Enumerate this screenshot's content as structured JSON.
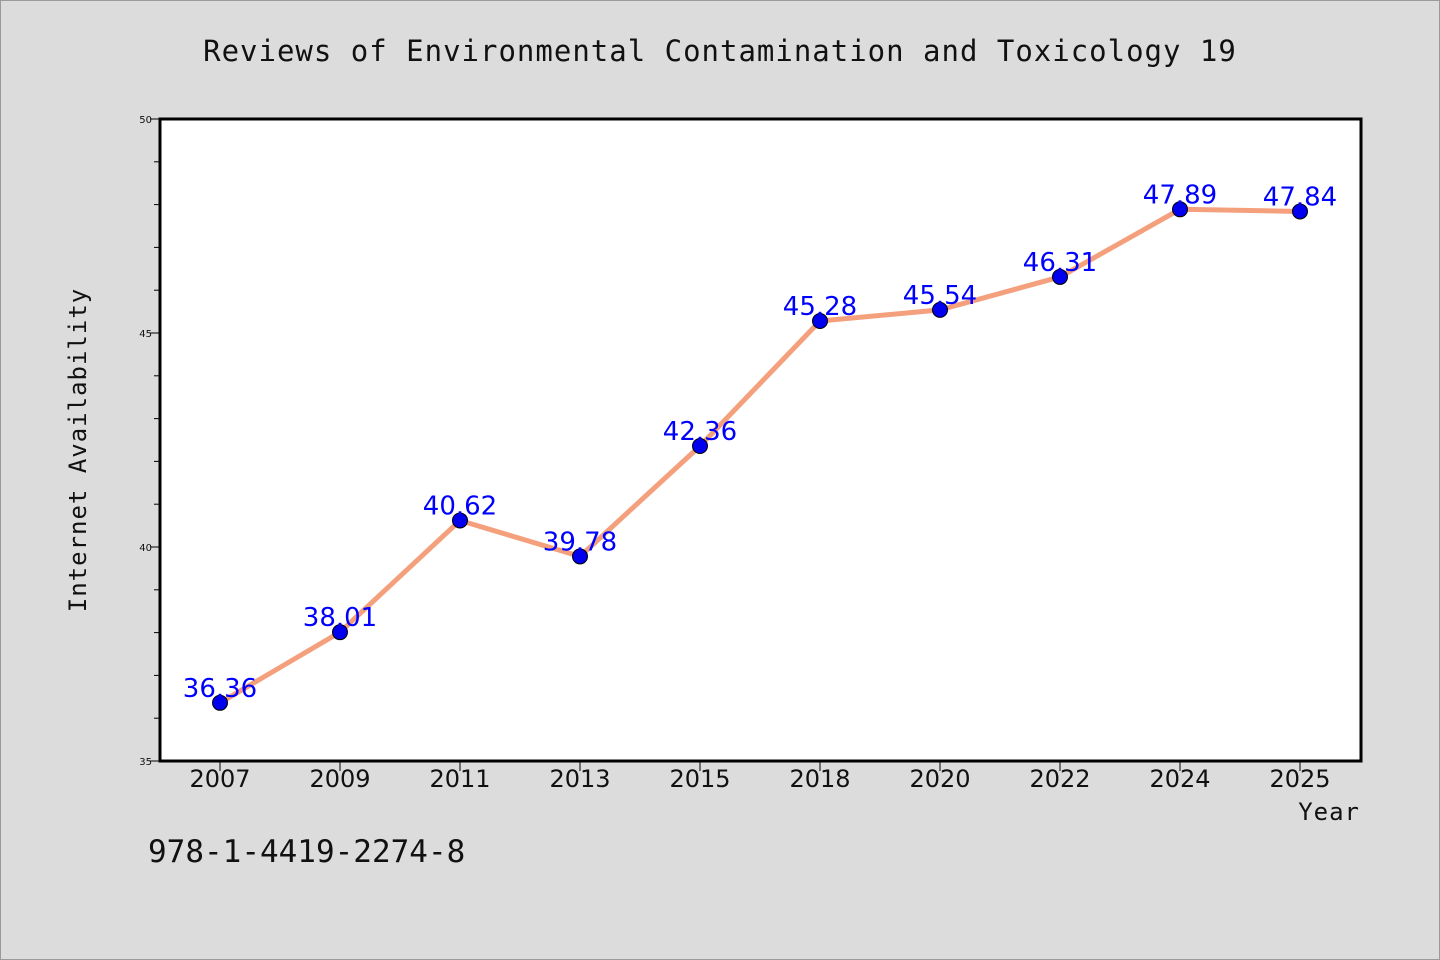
{
  "title": "Reviews of Environmental Contamination and Toxicology 19",
  "isbn": "978-1-4419-2274-8",
  "colors": {
    "background": "#dcdcdc",
    "plot_background": "#ffffff",
    "line": "#f4a07d",
    "marker": "#0000ee",
    "data_label": "#0000ff"
  },
  "chart_data": {
    "type": "line",
    "title": "Reviews of Environmental Contamination and Toxicology 19",
    "xlabel": "Year",
    "ylabel": "Internet Availability",
    "categories": [
      "2007",
      "2009",
      "2011",
      "2013",
      "2015",
      "2018",
      "2020",
      "2022",
      "2024",
      "2025"
    ],
    "values": [
      36.36,
      38.01,
      40.62,
      39.78,
      42.36,
      45.28,
      45.54,
      46.31,
      47.89,
      47.84
    ],
    "data_labels": [
      "36.36",
      "38.01",
      "40.62",
      "39.78",
      "42.36",
      "45.28",
      "45.54",
      "46.31",
      "47.89",
      "47.84"
    ],
    "ylim": [
      35,
      50
    ],
    "yticks": [
      "35",
      "40",
      "45",
      "50"
    ],
    "grid": false,
    "legend": "none"
  }
}
